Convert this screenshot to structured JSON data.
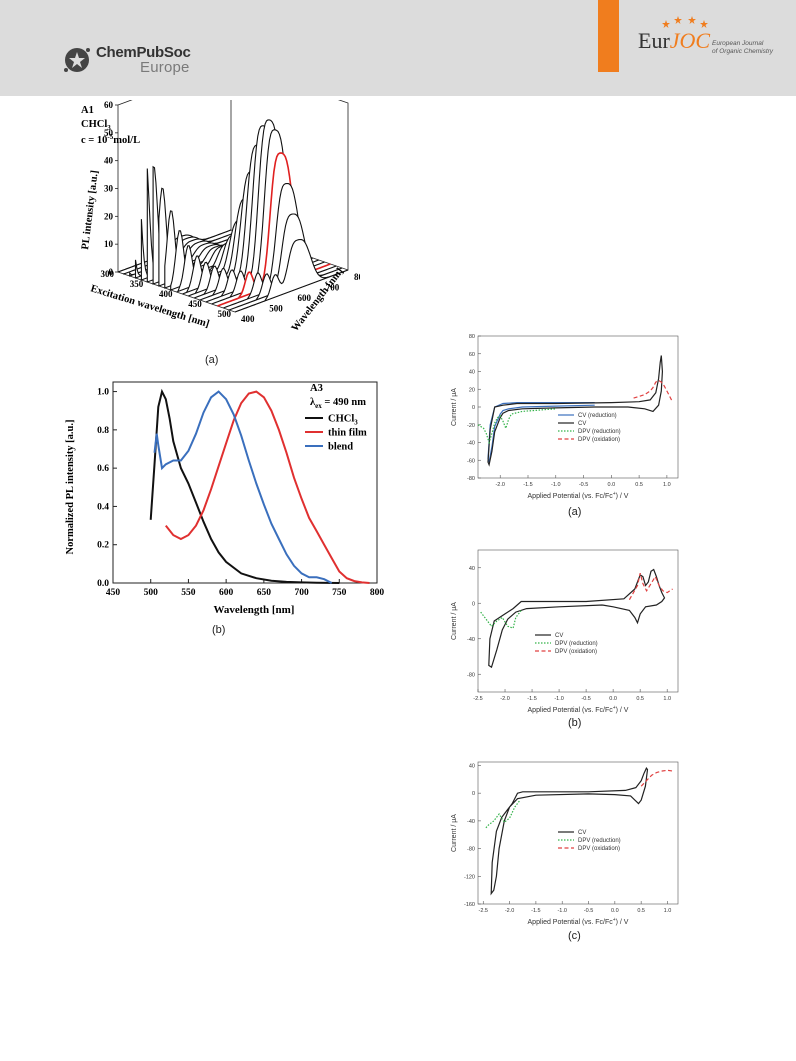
{
  "header": {
    "publisher_name": "ChemPubSoc",
    "publisher_region": "Europe",
    "journal_logo": "EurJOC",
    "journal_logo_part1": "Eur",
    "journal_logo_part2": "JOC",
    "journal_subtitle_line1": "European Journal",
    "journal_subtitle_line2": "of Organic Chemistry",
    "accent_color": "#f07d1e"
  },
  "panel_labels": {
    "fig3d": "(a)",
    "fig_pl": "(b)",
    "cv_a": "(a)",
    "cv_b": "(b)",
    "cv_c": "(c)"
  },
  "chart_data": [
    {
      "id": "fig3d",
      "type": "waterfall",
      "annotation": [
        "A1",
        "CHCl3",
        "c = 10^-5 mol/L"
      ],
      "annotation_display": {
        "l1": "A1",
        "l2a": "CHCl",
        "l2b": "3",
        "l3a": "c = 10",
        "l3b": "-5",
        "l3c": "mol/L"
      },
      "zlabel": "PL intensity [a.u.]",
      "xlabel": "Excitation wavelength [nm]",
      "ylabel": "Wavelength [nm]",
      "z_ticks": [
        0,
        10,
        20,
        30,
        40,
        50,
        60
      ],
      "x_ticks": [
        300,
        350,
        400,
        450,
        500
      ],
      "y_ticks": [
        400,
        500,
        600,
        700,
        800
      ],
      "excitation_range": [
        300,
        500
      ],
      "emission_range": [
        400,
        800
      ],
      "num_traces": 21,
      "highlighted_excitation": 470,
      "colors": {
        "trace": "#111111",
        "highlight": "#e02020"
      }
    },
    {
      "id": "fig_pl",
      "type": "line",
      "annotation": [
        "A3",
        "λex = 490 nm"
      ],
      "annotation_display": {
        "l1": "A3",
        "l2a": "λ",
        "l2b": "ex",
        "l2c": " = 490 nm"
      },
      "xlabel": "Wavelength [nm]",
      "ylabel": "Normalized PL intensity [a.u.]",
      "xlim": [
        450,
        800
      ],
      "ylim": [
        0,
        1.05
      ],
      "x_ticks": [
        450,
        500,
        550,
        600,
        650,
        700,
        750,
        800
      ],
      "y_ticks": [
        0.0,
        0.2,
        0.4,
        0.6,
        0.8,
        1.0
      ],
      "legend": {
        "position": "top-right"
      },
      "series": [
        {
          "name": "CHCl3",
          "legend_a": "CHCl",
          "legend_b": "3",
          "color": "#111111",
          "x": [
            500,
            505,
            510,
            515,
            520,
            525,
            530,
            540,
            550,
            560,
            570,
            580,
            590,
            600,
            620,
            640,
            660,
            680,
            700,
            720,
            750
          ],
          "y": [
            0.33,
            0.62,
            0.92,
            1.0,
            0.96,
            0.86,
            0.74,
            0.6,
            0.52,
            0.42,
            0.32,
            0.23,
            0.16,
            0.11,
            0.05,
            0.025,
            0.012,
            0.006,
            0.003,
            0.001,
            0.0
          ]
        },
        {
          "name": "thin film",
          "color": "#e03030",
          "x": [
            520,
            530,
            540,
            550,
            560,
            570,
            580,
            590,
            600,
            610,
            620,
            630,
            640,
            650,
            660,
            670,
            680,
            690,
            700,
            710,
            720,
            730,
            740,
            750,
            760,
            770,
            780,
            790
          ],
          "y": [
            0.3,
            0.25,
            0.23,
            0.25,
            0.3,
            0.38,
            0.49,
            0.61,
            0.73,
            0.85,
            0.94,
            0.99,
            1.0,
            0.97,
            0.9,
            0.8,
            0.68,
            0.55,
            0.44,
            0.34,
            0.27,
            0.2,
            0.13,
            0.06,
            0.025,
            0.01,
            0.003,
            0.0
          ]
        },
        {
          "name": "blend",
          "color": "#3a6fbd",
          "x": [
            505,
            508,
            510,
            515,
            520,
            530,
            540,
            550,
            560,
            570,
            580,
            590,
            600,
            610,
            620,
            630,
            640,
            650,
            660,
            670,
            680,
            690,
            700,
            710,
            720,
            730,
            740
          ],
          "y": [
            0.68,
            0.78,
            0.72,
            0.6,
            0.62,
            0.64,
            0.64,
            0.69,
            0.78,
            0.89,
            0.97,
            1.0,
            0.96,
            0.88,
            0.77,
            0.64,
            0.52,
            0.41,
            0.31,
            0.23,
            0.15,
            0.09,
            0.05,
            0.03,
            0.03,
            0.02,
            0.0
          ]
        }
      ]
    },
    {
      "id": "cv_a",
      "type": "line",
      "xlabel": "Applied Potential (vs. Fc/Fc+) / V",
      "xlabel_display": {
        "a": "Applied Potential (vs. Fc/Fc",
        "b": "+",
        "c": ") / V"
      },
      "ylabel": "Current / μA",
      "xlim": [
        -2.4,
        1.2
      ],
      "ylim": [
        -80,
        80
      ],
      "x_ticks": [
        -2.0,
        -1.5,
        -1.0,
        -0.5,
        0.0,
        0.5,
        1.0
      ],
      "x_tick_labels": [
        "-2.0",
        "-1.5",
        "-1.0",
        "-0.5",
        "0.0",
        "0.5",
        "1.0"
      ],
      "y_ticks": [
        -80,
        -60,
        -40,
        -20,
        0,
        20,
        40,
        60,
        80
      ],
      "legend": {
        "position": "bottom-right"
      },
      "series": [
        {
          "name": "CV (reduction)",
          "color": "#3a6fbd",
          "style": "solid",
          "x": [
            -0.3,
            -1.0,
            -1.6,
            -1.85,
            -1.95,
            -2.0,
            -2.1,
            -2.15,
            -2.2,
            -2.22,
            -2.18,
            -2.1,
            -1.95,
            -1.7,
            -1.2,
            -0.6,
            -0.3
          ],
          "y": [
            2,
            1,
            0,
            -2,
            -4,
            -8,
            -22,
            -45,
            -62,
            -58,
            -20,
            0,
            4,
            5,
            5,
            5,
            5
          ]
        },
        {
          "name": "CV",
          "color": "#222222",
          "style": "solid",
          "x": [
            -0.3,
            -1.0,
            -1.6,
            -1.85,
            -1.95,
            -2.0,
            -2.1,
            -2.15,
            -2.2,
            -2.22,
            -2.18,
            -2.1,
            -1.95,
            -1.7,
            -1.0,
            0.0,
            0.5,
            0.7,
            0.8,
            0.85,
            0.88,
            0.9,
            0.92,
            0.9,
            0.85,
            0.75,
            0.6,
            0.3,
            -0.3
          ],
          "y": [
            0,
            -1,
            -2,
            -4,
            -7,
            -12,
            -28,
            -50,
            -65,
            -62,
            -25,
            0,
            2,
            4,
            4,
            5,
            6,
            8,
            16,
            32,
            50,
            58,
            40,
            18,
            2,
            -5,
            -2,
            0,
            0
          ]
        },
        {
          "name": "DPV (reduction)",
          "color": "#34b34a",
          "style": "dotted",
          "x": [
            -2.4,
            -2.3,
            -2.25,
            -2.2,
            -2.15,
            -2.1,
            -2.05,
            -2.0,
            -1.95,
            -1.9,
            -1.85,
            -1.8,
            -1.6,
            -1.0
          ],
          "y": [
            -20,
            -24,
            -30,
            -40,
            -30,
            -18,
            -12,
            -10,
            -16,
            -24,
            -14,
            -8,
            -5,
            -2
          ]
        },
        {
          "name": "DPV (oxidation)",
          "color": "#e04040",
          "style": "dashed",
          "x": [
            0.4,
            0.6,
            0.7,
            0.75,
            0.8,
            0.85,
            0.9,
            0.95,
            1.0,
            1.05,
            1.1
          ],
          "y": [
            10,
            14,
            18,
            22,
            28,
            30,
            28,
            24,
            18,
            12,
            6
          ]
        }
      ]
    },
    {
      "id": "cv_b",
      "type": "line",
      "xlabel": "Applied Potential (vs. Fc/Fc+) / V",
      "xlabel_display": {
        "a": "Applied Potential (vs. Fc/Fc",
        "b": "+",
        "c": ") / V"
      },
      "ylabel": "Current / μA",
      "xlim": [
        -2.5,
        1.2
      ],
      "ylim": [
        -100,
        60
      ],
      "x_ticks": [
        -2.5,
        -2.0,
        -1.5,
        -1.0,
        -0.5,
        0.0,
        0.5,
        1.0
      ],
      "x_tick_labels": [
        "-2.5",
        "-2.0",
        "-1.5",
        "-1.0",
        "-0.5",
        "0.0",
        "0.5",
        "1.0"
      ],
      "y_ticks": [
        -80,
        -40,
        0,
        40
      ],
      "legend": {
        "position": "bottom-left"
      },
      "series": [
        {
          "name": "CV",
          "color": "#222222",
          "style": "solid",
          "x": [
            -0.2,
            -1.0,
            -1.6,
            -1.8,
            -1.95,
            -2.05,
            -2.15,
            -2.25,
            -2.3,
            -2.28,
            -2.2,
            -2.0,
            -1.85,
            -1.7,
            -1.2,
            -0.5,
            0.2,
            0.4,
            0.5,
            0.55,
            0.6,
            0.65,
            0.7,
            0.75,
            0.8,
            0.85,
            0.9,
            0.95,
            0.9,
            0.8,
            0.6,
            0.5,
            0.45,
            0.4,
            0.3,
            0.0,
            -0.2
          ],
          "y": [
            -2,
            -4,
            -6,
            -10,
            -18,
            -30,
            -52,
            -72,
            -70,
            -40,
            -20,
            -12,
            -6,
            2,
            2,
            2,
            5,
            16,
            32,
            30,
            20,
            24,
            36,
            38,
            30,
            20,
            12,
            6,
            2,
            -2,
            -4,
            -12,
            -22,
            -16,
            -8,
            -4,
            -2
          ]
        },
        {
          "name": "DPV (reduction)",
          "color": "#34b34a",
          "style": "dotted",
          "x": [
            -2.45,
            -2.35,
            -2.25,
            -2.15,
            -2.05,
            -1.95,
            -1.85,
            -1.8,
            -1.7
          ],
          "y": [
            -10,
            -18,
            -26,
            -20,
            -16,
            -26,
            -28,
            -16,
            -8
          ]
        },
        {
          "name": "DPV (oxidation)",
          "color": "#e04040",
          "style": "dashed",
          "x": [
            0.3,
            0.45,
            0.5,
            0.55,
            0.62,
            0.7,
            0.78,
            0.85,
            0.92,
            1.0,
            1.1
          ],
          "y": [
            4,
            20,
            34,
            22,
            14,
            22,
            30,
            20,
            14,
            12,
            16
          ]
        }
      ]
    },
    {
      "id": "cv_c",
      "type": "line",
      "xlabel": "Applied Potential (vs. Fc/Fc+) / V",
      "xlabel_display": {
        "a": "Applied Potential (vs. Fc/Fc",
        "b": "+",
        "c": ") / V"
      },
      "ylabel": "Current / μA",
      "xlim": [
        -2.6,
        1.2
      ],
      "ylim": [
        -160,
        45
      ],
      "x_ticks": [
        -2.5,
        -2.0,
        -1.5,
        -1.0,
        -0.5,
        0.0,
        0.5,
        1.0
      ],
      "x_tick_labels": [
        "-2.5",
        "-2.0",
        "-1.5",
        "-1.0",
        "-0.5",
        "0.0",
        "0.5",
        "1.0"
      ],
      "y_ticks": [
        -160,
        -120,
        -80,
        -40,
        0,
        40
      ],
      "legend": {
        "position": "bottom-center"
      },
      "series": [
        {
          "name": "CV",
          "color": "#222222",
          "style": "solid",
          "x": [
            -0.5,
            -1.5,
            -1.85,
            -2.0,
            -2.1,
            -2.2,
            -2.25,
            -2.3,
            -2.35,
            -2.33,
            -2.25,
            -2.15,
            -2.05,
            -1.95,
            -1.85,
            -1.75,
            -1.5,
            -0.5,
            0.2,
            0.4,
            0.5,
            0.55,
            0.6,
            0.62,
            0.58,
            0.5,
            0.45,
            0.3,
            0.0,
            -0.5
          ],
          "y": [
            -1,
            -3,
            -8,
            -20,
            -40,
            -80,
            -120,
            -140,
            -145,
            -100,
            -55,
            -35,
            -25,
            -15,
            0,
            2,
            2,
            2,
            4,
            8,
            18,
            28,
            36,
            34,
            10,
            -10,
            -15,
            -4,
            -2,
            -1
          ]
        },
        {
          "name": "DPV (reduction)",
          "color": "#34b34a",
          "style": "dotted",
          "x": [
            -2.45,
            -2.4,
            -2.3,
            -2.2,
            -2.1,
            -2.0,
            -1.9,
            -1.8
          ],
          "y": [
            -50,
            -46,
            -40,
            -30,
            -42,
            -36,
            -20,
            -10
          ]
        },
        {
          "name": "DPV (oxidation)",
          "color": "#e04040",
          "style": "dashed",
          "x": [
            0.5,
            0.6,
            0.7,
            0.8,
            0.9,
            1.0,
            1.1
          ],
          "y": [
            10,
            18,
            26,
            30,
            32,
            33,
            32
          ]
        }
      ]
    }
  ]
}
